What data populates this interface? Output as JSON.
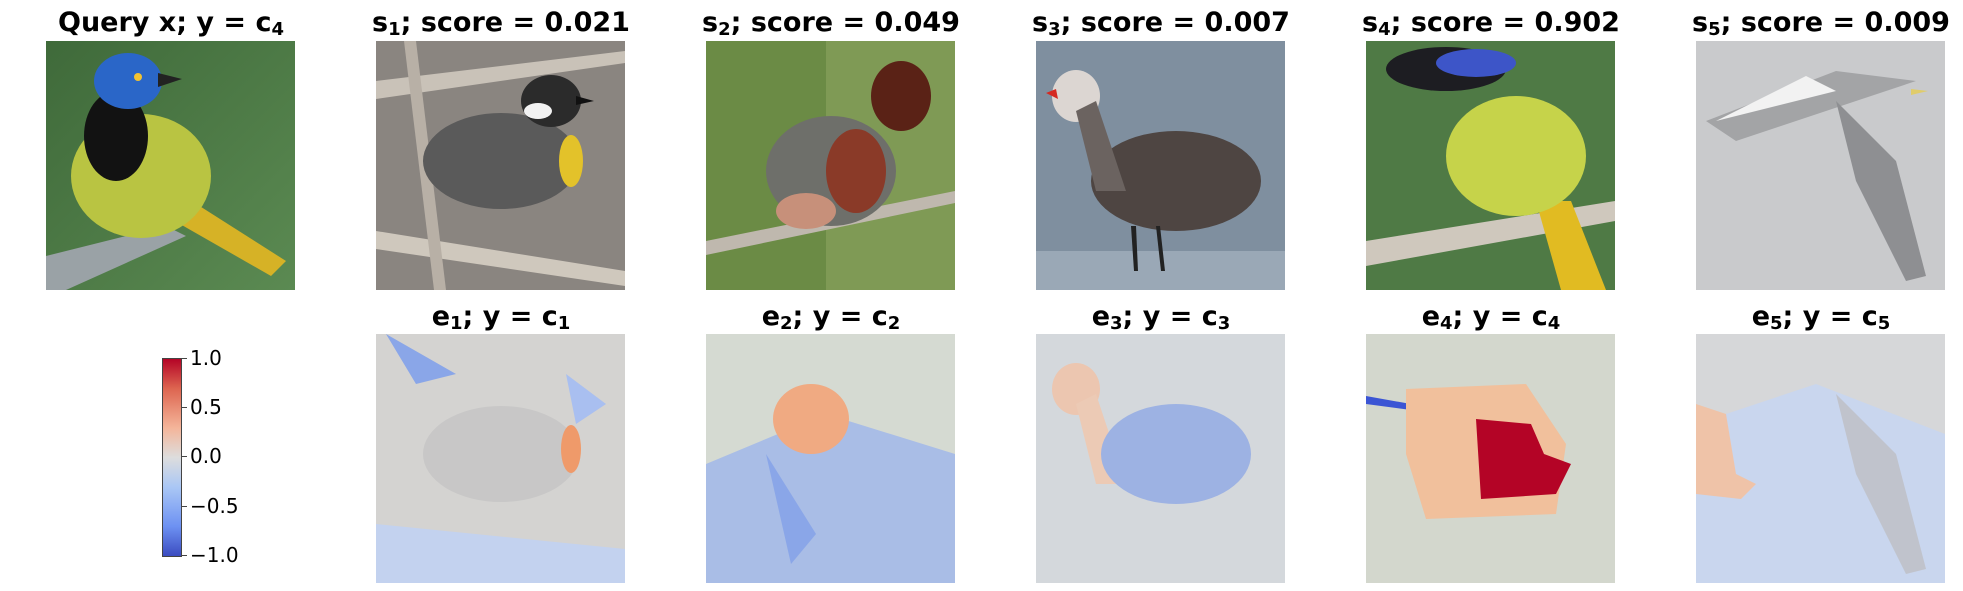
{
  "query": {
    "title_main": "Query x; y = c",
    "title_sub": "4"
  },
  "top_panels": [
    {
      "s_sub": "1",
      "label": "s",
      "score_text": "; score = 0.021"
    },
    {
      "s_sub": "2",
      "label": "s",
      "score_text": "; score = 0.049"
    },
    {
      "s_sub": "3",
      "label": "s",
      "score_text": "; score = 0.007"
    },
    {
      "s_sub": "4",
      "label": "s",
      "score_text": "; score = 0.902"
    },
    {
      "s_sub": "5",
      "label": "s",
      "score_text": "; score = 0.009"
    }
  ],
  "bottom_panels": [
    {
      "label": "e",
      "e_sub": "1",
      "mid": "; y = c",
      "c_sub": "1"
    },
    {
      "label": "e",
      "e_sub": "2",
      "mid": "; y = c",
      "c_sub": "2"
    },
    {
      "label": "e",
      "e_sub": "3",
      "mid": "; y = c",
      "c_sub": "3"
    },
    {
      "label": "e",
      "e_sub": "4",
      "mid": "; y = c",
      "c_sub": "4"
    },
    {
      "label": "e",
      "e_sub": "5",
      "mid": "; y = c",
      "c_sub": "5"
    }
  ],
  "colorbar": {
    "ticks": [
      "1.0",
      "0.5",
      "0.0",
      "−0.5",
      "−1.0"
    ],
    "colormap": "coolwarm",
    "range": [
      -1.0,
      1.0
    ]
  },
  "colors": {
    "positive": "#b40426",
    "neutral": "#dddddd",
    "negative": "#3b4cc0"
  }
}
